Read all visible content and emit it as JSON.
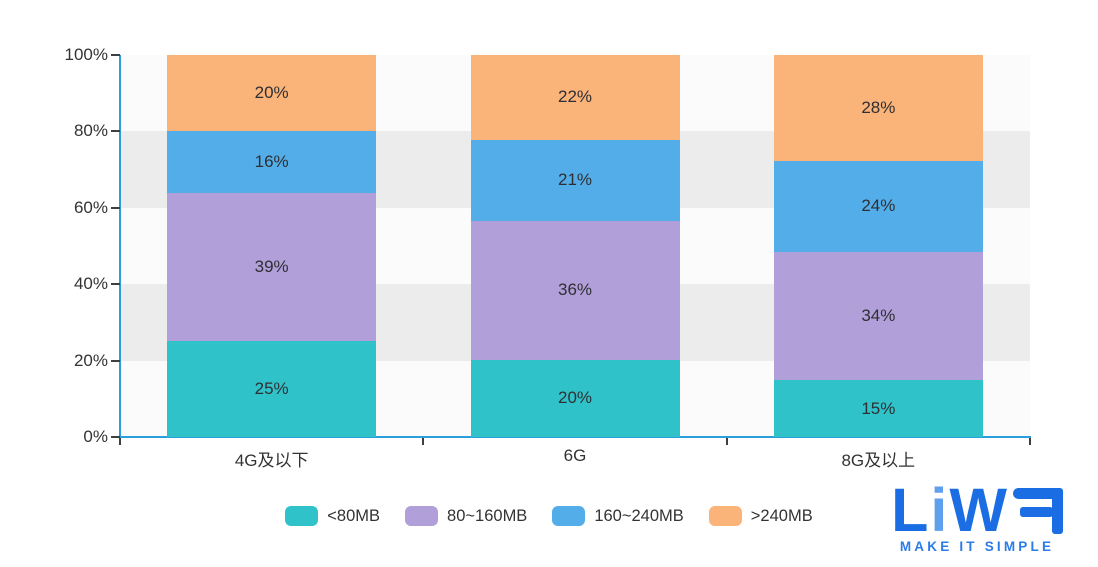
{
  "chart_data": {
    "type": "bar",
    "stacked": true,
    "title": "",
    "categories": [
      "4G及以下",
      "6G",
      "8G及以上"
    ],
    "series": [
      {
        "name": "<80MB",
        "color": "#2fc3c9",
        "values": [
          25,
          20,
          15
        ]
      },
      {
        "name": "80~160MB",
        "color": "#b19fd9",
        "values": [
          39,
          36,
          34
        ]
      },
      {
        "name": "160~240MB",
        "color": "#53ade8",
        "values": [
          16,
          21,
          24
        ]
      },
      {
        "name": ">240MB",
        "color": "#fab378",
        "values": [
          20,
          22,
          28
        ]
      }
    ],
    "y_tick_labels": [
      "100%",
      "80%",
      "60%",
      "40%",
      "20%",
      "0%"
    ],
    "ylim": [
      0,
      100
    ],
    "value_suffix": "%",
    "legend_position": "bottom",
    "grid_bands": [
      "#fbfbfb",
      "#ececec",
      "#fbfbfb",
      "#ececec",
      "#fbfbfb"
    ],
    "axis_color": "#2b9fd9",
    "tick_color": "#3f3f3f",
    "label_color": "#333333"
  },
  "logo": {
    "title": "LiWA",
    "tagline": "MAKE IT SIMPLE",
    "main_color": "#1b6de3",
    "accent_color": "#5fa0ee"
  }
}
